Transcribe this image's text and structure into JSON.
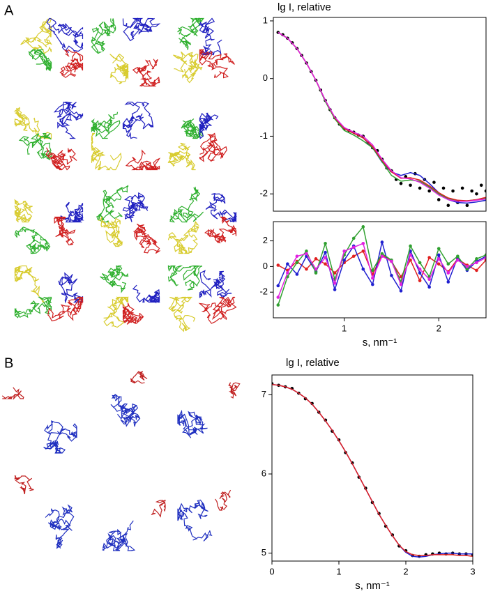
{
  "panels": [
    "A",
    "B"
  ],
  "chart_data": [
    {
      "type": "line",
      "y_label": "lg I, relative",
      "xlim": [
        0.25,
        2.5
      ],
      "ylim": [
        -2.3,
        1.06
      ],
      "yticks": [
        -2,
        -1,
        0,
        1
      ],
      "series": [
        {
          "color": "#000000",
          "style": "points",
          "x": [
            0.3,
            0.35,
            0.4,
            0.45,
            0.5,
            0.55,
            0.6,
            0.65,
            0.7,
            0.75,
            0.8,
            0.85,
            0.9,
            0.95,
            1.0,
            1.05,
            1.1,
            1.15,
            1.2,
            1.25,
            1.3,
            1.35,
            1.4,
            1.45,
            1.5,
            1.55,
            1.6,
            1.65,
            1.7,
            1.75,
            1.8,
            1.85,
            1.9,
            1.95,
            2.0,
            2.05,
            2.1,
            2.15,
            2.2,
            2.25,
            2.3,
            2.35,
            2.4,
            2.45,
            2.5
          ],
          "values": [
            0.8,
            0.76,
            0.7,
            0.62,
            0.52,
            0.4,
            0.27,
            0.12,
            -0.03,
            -0.2,
            -0.38,
            -0.54,
            -0.68,
            -0.79,
            -0.87,
            -0.9,
            -0.93,
            -0.98,
            -1.0,
            -1.12,
            -1.2,
            -1.25,
            -1.4,
            -1.55,
            -1.6,
            -1.75,
            -1.82,
            -1.7,
            -1.85,
            -1.65,
            -1.9,
            -1.75,
            -1.95,
            -1.8,
            -2.1,
            -1.9,
            -2.2,
            -1.95,
            -2.15,
            -1.9,
            -2.2,
            -1.95,
            -2.0,
            -1.85,
            -1.95
          ]
        },
        {
          "color": "#2020d0",
          "style": "line",
          "x": [
            0.3,
            0.4,
            0.5,
            0.6,
            0.7,
            0.8,
            0.9,
            1.0,
            1.1,
            1.2,
            1.3,
            1.4,
            1.5,
            1.6,
            1.7,
            1.8,
            1.9,
            2.0,
            2.1,
            2.2,
            2.3,
            2.4,
            2.5
          ],
          "values": [
            0.8,
            0.7,
            0.52,
            0.27,
            -0.03,
            -0.38,
            -0.68,
            -0.87,
            -0.95,
            -1.03,
            -1.2,
            -1.45,
            -1.62,
            -1.68,
            -1.63,
            -1.68,
            -1.82,
            -1.98,
            -2.1,
            -2.15,
            -2.16,
            -2.14,
            -2.11
          ]
        },
        {
          "color": "#30a030",
          "style": "line",
          "x": [
            0.3,
            0.4,
            0.5,
            0.6,
            0.7,
            0.8,
            0.9,
            1.0,
            1.1,
            1.2,
            1.3,
            1.4,
            1.5,
            1.6,
            1.7,
            1.8,
            1.9,
            2.0,
            2.1,
            2.2,
            2.3,
            2.4,
            2.5
          ],
          "values": [
            0.8,
            0.7,
            0.52,
            0.27,
            -0.03,
            -0.4,
            -0.7,
            -0.9,
            -0.98,
            -1.08,
            -1.2,
            -1.44,
            -1.68,
            -1.78,
            -1.76,
            -1.78,
            -1.88,
            -2.0,
            -2.08,
            -2.12,
            -2.12,
            -2.1,
            -2.08
          ]
        },
        {
          "color": "#e02020",
          "style": "line",
          "x": [
            0.3,
            0.4,
            0.5,
            0.6,
            0.7,
            0.8,
            0.9,
            1.0,
            1.1,
            1.2,
            1.3,
            1.4,
            1.5,
            1.6,
            1.7,
            1.8,
            1.9,
            2.0,
            2.1,
            2.2,
            2.3,
            2.4,
            2.5
          ],
          "values": [
            0.8,
            0.7,
            0.52,
            0.27,
            -0.03,
            -0.38,
            -0.68,
            -0.87,
            -0.95,
            -1.03,
            -1.18,
            -1.42,
            -1.62,
            -1.73,
            -1.72,
            -1.76,
            -1.86,
            -1.98,
            -2.07,
            -2.11,
            -2.12,
            -2.1,
            -2.06
          ]
        },
        {
          "color": "#e020e0",
          "style": "line",
          "x": [
            0.3,
            0.4,
            0.5,
            0.6,
            0.7,
            0.8,
            0.9,
            1.0,
            1.1,
            1.2,
            1.3,
            1.4,
            1.5,
            1.6,
            1.7,
            1.8,
            1.9,
            2.0,
            2.1,
            2.2,
            2.3,
            2.4,
            2.5
          ],
          "values": [
            0.8,
            0.7,
            0.52,
            0.27,
            -0.03,
            -0.38,
            -0.67,
            -0.85,
            -0.93,
            -1.0,
            -1.15,
            -1.4,
            -1.6,
            -1.72,
            -1.74,
            -1.8,
            -1.9,
            -2.02,
            -2.1,
            -2.13,
            -2.13,
            -2.11,
            -2.09
          ]
        }
      ]
    },
    {
      "type": "line",
      "x_label": "s, nm⁻¹",
      "xlim": [
        0.25,
        2.5
      ],
      "xticks": [
        1,
        2
      ],
      "ylim": [
        -4,
        3.5
      ],
      "yticks": [
        -2,
        0,
        2
      ],
      "series": [
        {
          "color": "#e02020",
          "style": "line+points",
          "x": [
            0.3,
            0.4,
            0.5,
            0.6,
            0.7,
            0.8,
            0.9,
            1.0,
            1.1,
            1.2,
            1.3,
            1.4,
            1.5,
            1.6,
            1.7,
            1.8,
            1.9,
            2.0,
            2.1,
            2.2,
            2.3,
            2.4,
            2.5
          ],
          "values": [
            0.1,
            -0.3,
            0.4,
            -0.2,
            0.6,
            0.2,
            -0.5,
            0.3,
            0.8,
            1.2,
            -0.6,
            0.9,
            0.4,
            -0.8,
            0.5,
            -1.1,
            0.7,
            0.2,
            -0.4,
            0.6,
            0.1,
            -0.3,
            0.5
          ]
        },
        {
          "color": "#2020d0",
          "style": "line+points",
          "x": [
            0.3,
            0.4,
            0.5,
            0.6,
            0.7,
            0.8,
            0.9,
            1.0,
            1.1,
            1.2,
            1.3,
            1.4,
            1.5,
            1.6,
            1.7,
            1.8,
            1.9,
            2.0,
            2.1,
            2.2,
            2.3,
            2.4,
            2.5
          ],
          "values": [
            -1.5,
            0.2,
            -0.6,
            0.8,
            -0.4,
            1.1,
            -1.8,
            0.5,
            1.6,
            -0.2,
            -1.4,
            1.9,
            -0.7,
            -1.9,
            1.2,
            -0.5,
            -1.6,
            0.9,
            -1.2,
            0.7,
            -0.3,
            0.4,
            0.8
          ]
        },
        {
          "color": "#30a030",
          "style": "line+points",
          "x": [
            0.3,
            0.4,
            0.5,
            0.6,
            0.7,
            0.8,
            0.9,
            1.0,
            1.1,
            1.2,
            1.3,
            1.4,
            1.5,
            1.6,
            1.7,
            1.8,
            1.9,
            2.0,
            2.1,
            2.2,
            2.3,
            2.4,
            2.5
          ],
          "values": [
            -3.0,
            -0.8,
            0.3,
            1.2,
            -0.5,
            1.8,
            -1.0,
            0.9,
            2.2,
            3.1,
            -0.3,
            1.0,
            0.5,
            -1.2,
            1.6,
            0.3,
            -0.8,
            1.4,
            0.2,
            0.8,
            -0.2,
            0.6,
            0.9
          ]
        },
        {
          "color": "#e020e0",
          "style": "line+points",
          "x": [
            0.3,
            0.4,
            0.5,
            0.6,
            0.7,
            0.8,
            0.9,
            1.0,
            1.1,
            1.2,
            1.3,
            1.4,
            1.5,
            1.6,
            1.7,
            1.8,
            1.9,
            2.0,
            2.1,
            2.2,
            2.3,
            2.4,
            2.5
          ],
          "values": [
            -2.4,
            -0.5,
            0.8,
            1.0,
            -0.2,
            0.7,
            -1.3,
            1.2,
            1.5,
            1.8,
            -0.9,
            0.8,
            0.4,
            -1.4,
            0.9,
            -0.2,
            -1.0,
            0.6,
            -0.5,
            0.5,
            0.0,
            0.3,
            0.7
          ]
        }
      ]
    },
    {
      "type": "line",
      "title": "lg I, relative",
      "x_label": "s, nm⁻¹",
      "xlim": [
        0,
        3
      ],
      "xticks": [
        0,
        1,
        2,
        3
      ],
      "ylim": [
        4.9,
        7.25
      ],
      "yticks": [
        5,
        6,
        7
      ],
      "series": [
        {
          "color": "#000000",
          "style": "points",
          "x": [
            0,
            0.1,
            0.2,
            0.3,
            0.4,
            0.5,
            0.6,
            0.7,
            0.8,
            0.9,
            1.0,
            1.1,
            1.2,
            1.3,
            1.4,
            1.5,
            1.6,
            1.7,
            1.8,
            1.9,
            2.0,
            2.1,
            2.2,
            2.3,
            2.4,
            2.5,
            2.6,
            2.7,
            2.8,
            2.9,
            3.0
          ],
          "values": [
            7.14,
            7.12,
            7.1,
            7.08,
            7.02,
            6.95,
            6.89,
            6.78,
            6.68,
            6.54,
            6.43,
            6.27,
            6.14,
            5.96,
            5.82,
            5.64,
            5.5,
            5.34,
            5.23,
            5.09,
            5.03,
            4.97,
            4.96,
            4.98,
            4.99,
            5.0,
            4.99,
            5.0,
            4.99,
            4.99,
            4.98
          ]
        },
        {
          "color": "#2020d0",
          "style": "line",
          "x": [
            0,
            0.1,
            0.2,
            0.3,
            0.4,
            0.5,
            0.6,
            0.7,
            0.8,
            0.9,
            1.0,
            1.1,
            1.2,
            1.3,
            1.4,
            1.5,
            1.6,
            1.7,
            1.8,
            1.9,
            2.0,
            2.1,
            2.2,
            2.3,
            2.4,
            2.5,
            2.6,
            2.7,
            2.8,
            2.9,
            3.0
          ],
          "values": [
            7.13,
            7.12,
            7.1,
            7.07,
            7.02,
            6.96,
            6.88,
            6.78,
            6.67,
            6.55,
            6.42,
            6.28,
            6.13,
            5.97,
            5.81,
            5.65,
            5.49,
            5.35,
            5.22,
            5.1,
            5.01,
            4.96,
            4.95,
            4.96,
            4.98,
            4.99,
            5.0,
            5.0,
            4.99,
            4.99,
            4.99
          ]
        },
        {
          "color": "#e02020",
          "style": "line",
          "x": [
            0,
            0.1,
            0.2,
            0.3,
            0.4,
            0.5,
            0.6,
            0.7,
            0.8,
            0.9,
            1.0,
            1.1,
            1.2,
            1.3,
            1.4,
            1.5,
            1.6,
            1.7,
            1.8,
            1.9,
            2.0,
            2.1,
            2.2,
            2.3,
            2.4,
            2.5,
            2.6,
            2.7,
            2.8,
            2.9,
            3.0
          ],
          "values": [
            7.13,
            7.12,
            7.1,
            7.07,
            7.02,
            6.96,
            6.88,
            6.78,
            6.67,
            6.55,
            6.42,
            6.28,
            6.13,
            5.97,
            5.81,
            5.65,
            5.49,
            5.35,
            5.22,
            5.1,
            5.02,
            4.98,
            4.97,
            4.97,
            4.98,
            4.98,
            4.98,
            4.98,
            4.97,
            4.97,
            4.96
          ]
        }
      ]
    }
  ]
}
